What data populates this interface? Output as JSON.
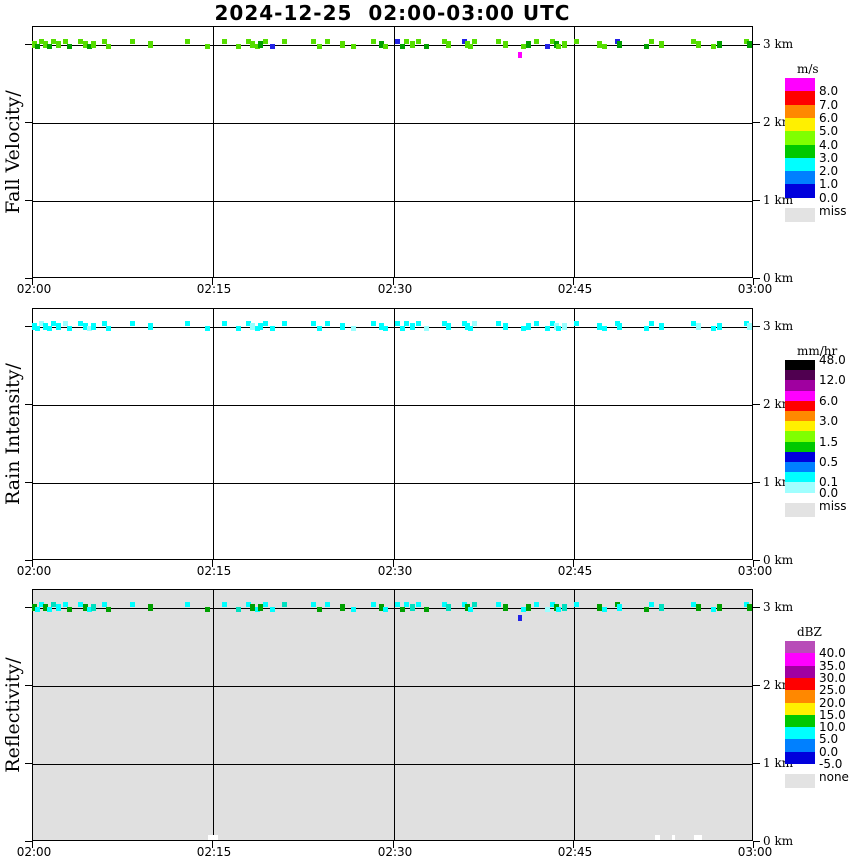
{
  "title": "2024-12-25  02:00-03:00 UTC",
  "chart_data": {
    "type": "heatmap",
    "title": "2024-12-25  02:00-03:00 UTC",
    "x_axis": {
      "ticks": [
        "02:00",
        "02:15",
        "02:30",
        "02:45",
        "03:00"
      ],
      "range_minutes": [
        0,
        60
      ]
    },
    "y_axis": {
      "labels": [
        "3 km",
        "2 km",
        "1 km",
        "0 km"
      ],
      "unit": "km",
      "range_km": [
        0,
        3.2
      ],
      "grid": true
    },
    "panels": [
      {
        "id": "fall-velocity",
        "ylabel": "Fall Velocity/",
        "background": "#FFFFFF",
        "point_colors": {
          "c": "#55DD00",
          "g": "#00A000",
          "b": "#2222E6",
          "m": "#FF00FF",
          "y": "#00FFFF",
          "p": "#99FFFF",
          "t": "#00E0C0"
        },
        "colorbar": {
          "unit": "m/s",
          "segment_colors": [
            "#FF00FF",
            "#FF0000",
            "#FF8800",
            "#FFF000",
            "#80FF00",
            "#00C800",
            "#00FFFF",
            "#0080FF",
            "#0000DC"
          ],
          "labels": [
            {
              "text": "8.0",
              "at": 1
            },
            {
              "text": "7.0",
              "at": 2
            },
            {
              "text": "6.0",
              "at": 3
            },
            {
              "text": "5.0",
              "at": 4
            },
            {
              "text": "4.0",
              "at": 5
            },
            {
              "text": "3.0",
              "at": 6
            },
            {
              "text": "2.0",
              "at": 7
            },
            {
              "text": "1.0",
              "at": 8
            },
            {
              "text": "0.0",
              "at": 9
            }
          ],
          "seg_h": 13.3,
          "miss": {
            "label": "miss",
            "color": "#E3E3E3"
          }
        }
      },
      {
        "id": "rain-intensity",
        "ylabel": "Rain Intensity/",
        "background": "#FFFFFF",
        "point_colors": {
          "c": "#00FFFF",
          "g": "#00FFFF",
          "b": "#00FFFF",
          "y": "#00FFFF",
          "p": "#99FFFF",
          "t": "#00FFFF"
        },
        "colorbar": {
          "unit": "mm/hr",
          "segment_colors": [
            "#000000",
            "#500050",
            "#A000A0",
            "#FF00FF",
            "#FF0000",
            "#FF8800",
            "#FFF000",
            "#80FF00",
            "#00C800",
            "#0000DC",
            "#0080FF",
            "#00FFFF",
            "#A0FFFF"
          ],
          "labels": [
            {
              "text": "48.0",
              "at": 0
            },
            {
              "text": "12.0",
              "at": 2
            },
            {
              "text": "6.0",
              "at": 4
            },
            {
              "text": "3.0",
              "at": 6
            },
            {
              "text": "1.5",
              "at": 8
            },
            {
              "text": "0.5",
              "at": 10
            },
            {
              "text": "0.1",
              "at": 12
            },
            {
              "text": "0.0",
              "at": 13
            }
          ],
          "seg_h": 10.2,
          "miss": {
            "label": "miss",
            "color": "#E3E3E3"
          }
        }
      },
      {
        "id": "reflectivity",
        "ylabel": "Reflectivity/",
        "background": "#E0E0E0",
        "point_colors": {
          "c": "#00FFFF",
          "g": "#00A000",
          "b": "#2222E6",
          "y": "#00FFFF",
          "p": "#99FFFF",
          "t": "#00E0C0"
        },
        "colorbar": {
          "unit": "dBZ",
          "segment_colors": [
            "#B84DB8",
            "#FF00FF",
            "#A000A0",
            "#FF0000",
            "#FF8800",
            "#FFF000",
            "#00C800",
            "#00FFFF",
            "#0080FF",
            "#0000DC"
          ],
          "labels": [
            {
              "text": "40.0",
              "at": 1
            },
            {
              "text": "35.0",
              "at": 2
            },
            {
              "text": "30.0",
              "at": 3
            },
            {
              "text": "25.0",
              "at": 4
            },
            {
              "text": "20.0",
              "at": 5
            },
            {
              "text": "15.0",
              "at": 6
            },
            {
              "text": "10.0",
              "at": 7
            },
            {
              "text": "5.0",
              "at": 8
            },
            {
              "text": "0.0",
              "at": 9
            },
            {
              "text": "-5.0",
              "at": 10
            }
          ],
          "seg_h": 12.3,
          "miss": {
            "label": "none",
            "color": "#E3E3E3"
          }
        }
      }
    ],
    "band_height_km": 3.0,
    "events": [
      [
        0.1,
        "c",
        "y",
        "g",
        "s"
      ],
      [
        0.3,
        "g",
        "y",
        "y",
        "b"
      ],
      [
        0.7,
        "c",
        "p",
        "y",
        "a"
      ],
      [
        1.0,
        "c",
        "y",
        "g",
        "s"
      ],
      [
        1.3,
        "g",
        "y",
        "y",
        "b"
      ],
      [
        1.7,
        "c",
        "y",
        "t",
        "a"
      ],
      [
        2.1,
        "c",
        "y",
        "y",
        "s"
      ],
      [
        2.7,
        "c",
        "p",
        "y",
        "a"
      ],
      [
        3.0,
        "g",
        "y",
        "g",
        "b"
      ],
      [
        3.9,
        "c",
        "y",
        "y",
        "a"
      ],
      [
        4.3,
        "c",
        "y",
        "g",
        "s"
      ],
      [
        4.7,
        "g",
        "p",
        "y",
        "b"
      ],
      [
        5.0,
        "c",
        "y",
        "t",
        "s"
      ],
      [
        5.9,
        "c",
        "y",
        "y",
        "a"
      ],
      [
        6.2,
        "c",
        "y",
        "g",
        "b"
      ],
      [
        8.2,
        "c",
        "y",
        "y",
        "a"
      ],
      [
        9.7,
        "c",
        "y",
        "g",
        "s"
      ],
      [
        12.8,
        "c",
        "y",
        "y",
        "a"
      ],
      [
        14.5,
        "c",
        "y",
        "g",
        "b"
      ],
      [
        15.9,
        "c",
        "y",
        "y",
        "a"
      ],
      [
        17.1,
        "c",
        "y",
        "t",
        "b"
      ],
      [
        17.9,
        "c",
        "y",
        "y",
        "a"
      ],
      [
        18.2,
        "c",
        "p",
        "g",
        "s"
      ],
      [
        18.6,
        "c",
        "y",
        "y",
        "b"
      ],
      [
        18.9,
        "g",
        "y",
        "g",
        "s"
      ],
      [
        19.3,
        "c",
        "y",
        "y",
        "a"
      ],
      [
        19.9,
        "b",
        "y",
        "y",
        "b"
      ],
      [
        20.9,
        "c",
        "y",
        "t",
        "a"
      ],
      [
        23.3,
        "c",
        "y",
        "y",
        "a"
      ],
      [
        23.8,
        "c",
        "y",
        "g",
        "b"
      ],
      [
        24.5,
        "c",
        "y",
        "y",
        "a"
      ],
      [
        25.7,
        "c",
        "y",
        "g",
        "s"
      ],
      [
        26.6,
        "c",
        "p",
        "y",
        "b"
      ],
      [
        28.3,
        "c",
        "y",
        "y",
        "a"
      ],
      [
        29.0,
        "g",
        "y",
        "g",
        "s"
      ],
      [
        29.3,
        "c",
        "y",
        "y",
        "b"
      ],
      [
        30.3,
        "b",
        "y",
        "y",
        "a"
      ],
      [
        30.7,
        "g",
        "y",
        "g",
        "b"
      ],
      [
        31.0,
        "c",
        "y",
        "y",
        "a"
      ],
      [
        31.5,
        "c",
        "y",
        "t",
        "s"
      ],
      [
        32.0,
        "c",
        "y",
        "y",
        "a"
      ],
      [
        32.7,
        "g",
        "p",
        "g",
        "b"
      ],
      [
        34.2,
        "c",
        "y",
        "y",
        "a"
      ],
      [
        34.5,
        "c",
        "y",
        "t",
        "s"
      ],
      [
        35.9,
        "b",
        "y",
        "y",
        "a"
      ],
      [
        36.1,
        "c",
        "y",
        "g",
        "s"
      ],
      [
        36.4,
        "c",
        "y",
        "y",
        "b"
      ],
      [
        36.7,
        "c",
        "p",
        "t",
        "a"
      ],
      [
        38.7,
        "c",
        "y",
        "y",
        "a"
      ],
      [
        39.3,
        "c",
        "y",
        "g",
        "s"
      ],
      [
        40.8,
        "c",
        "y",
        "y",
        "b"
      ],
      [
        41.2,
        "g",
        "y",
        "g",
        "s"
      ],
      [
        41.9,
        "c",
        "y",
        "y",
        "a"
      ],
      [
        42.8,
        "b",
        "y",
        "p",
        "b"
      ],
      [
        43.2,
        "c",
        "y",
        "y",
        "a"
      ],
      [
        43.5,
        "g",
        "p",
        "g",
        "s"
      ],
      [
        43.7,
        "c",
        "y",
        "y",
        "b"
      ],
      [
        44.2,
        "c",
        "p",
        "t",
        "s"
      ],
      [
        45.2,
        "c",
        "y",
        "y",
        "a"
      ],
      [
        47.1,
        "c",
        "y",
        "g",
        "s"
      ],
      [
        47.5,
        "c",
        "y",
        "y",
        "b"
      ],
      [
        48.6,
        "b",
        "y",
        "g",
        "a"
      ],
      [
        48.8,
        "g",
        "y",
        "y",
        "s"
      ],
      [
        51.0,
        "g",
        "y",
        "g",
        "b"
      ],
      [
        51.4,
        "c",
        "y",
        "y",
        "a"
      ],
      [
        52.3,
        "c",
        "y",
        "t",
        "s"
      ],
      [
        54.9,
        "c",
        "y",
        "y",
        "a"
      ],
      [
        55.3,
        "c",
        "p",
        "g",
        "s"
      ],
      [
        56.6,
        "c",
        "y",
        "y",
        "b"
      ],
      [
        57.1,
        "g",
        "y",
        "g",
        "s"
      ],
      [
        59.3,
        "c",
        "y",
        "y",
        "a"
      ],
      [
        59.6,
        "g",
        "p",
        "g",
        "s"
      ]
    ],
    "extra_points": [
      {
        "panel": 0,
        "t": 40.5,
        "color": "m"
      },
      {
        "panel": 2,
        "t": 40.5,
        "color": "b"
      }
    ],
    "bottom_marks_panel3": [
      {
        "t": 14.6,
        "w": 10
      },
      {
        "t": 51.8,
        "w": 5
      },
      {
        "t": 53.2,
        "w": 3
      },
      {
        "t": 55.0,
        "w": 8
      }
    ]
  }
}
